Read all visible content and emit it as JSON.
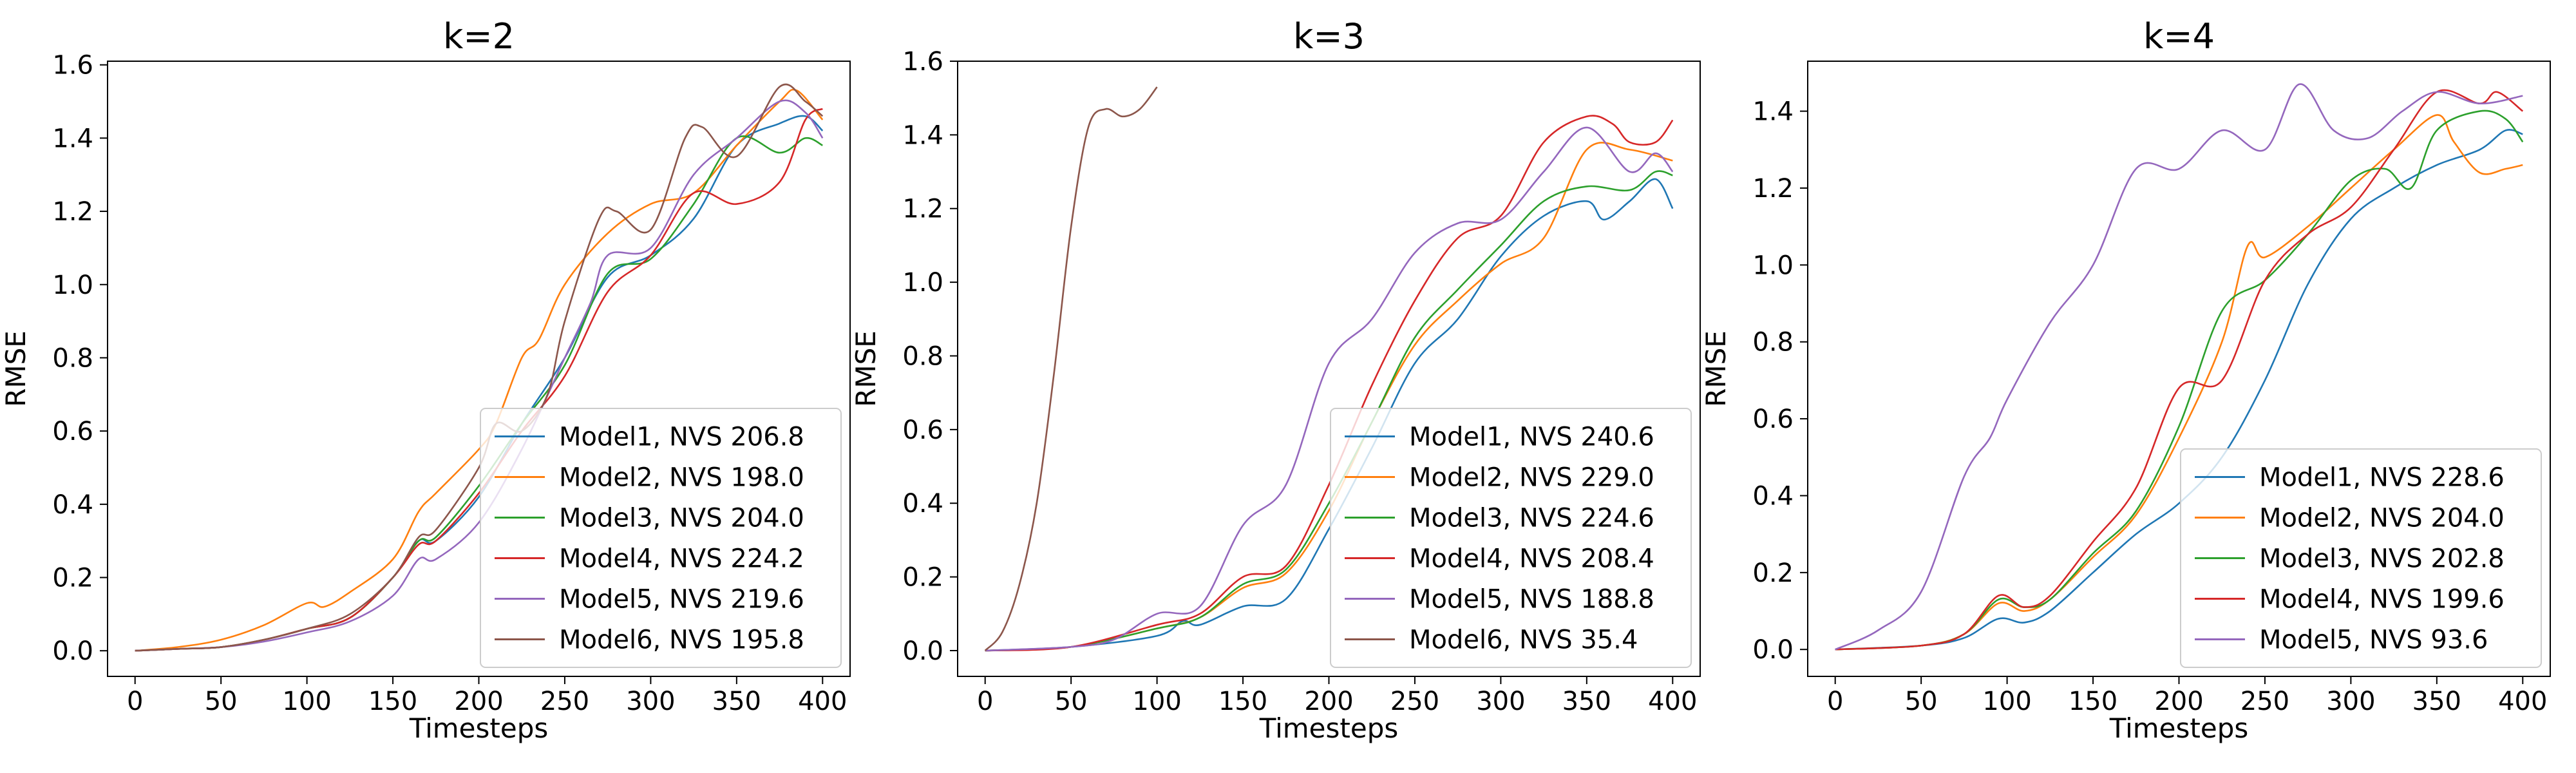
{
  "colors": {
    "Model1": "#1f77b4",
    "Model2": "#ff7f0e",
    "Model3": "#2ca02c",
    "Model4": "#d62728",
    "Model5": "#9467bd",
    "Model6": "#8c564b"
  },
  "chart_data": [
    {
      "type": "line",
      "title": "k=2",
      "xlabel": "Timesteps",
      "ylabel": "RMSE",
      "xlim": [
        -16,
        416
      ],
      "ylim": [
        -0.07,
        1.61
      ],
      "xticks": [
        0,
        50,
        100,
        150,
        200,
        250,
        300,
        350,
        400
      ],
      "yticks": [
        0.0,
        0.2,
        0.4,
        0.6,
        0.8,
        1.0,
        1.2,
        1.4,
        1.6
      ],
      "legend_position": "lower-right",
      "grid": false,
      "series": [
        {
          "name": "Model1, NVS 206.8",
          "x": [
            0,
            25,
            50,
            75,
            100,
            125,
            150,
            165,
            175,
            200,
            225,
            250,
            275,
            300,
            325,
            350,
            375,
            390,
            400
          ],
          "y": [
            0.0,
            0.005,
            0.01,
            0.03,
            0.06,
            0.09,
            0.2,
            0.3,
            0.3,
            0.42,
            0.62,
            0.8,
            1.02,
            1.08,
            1.18,
            1.38,
            1.44,
            1.46,
            1.42
          ]
        },
        {
          "name": "Model2, NVS 198.0",
          "x": [
            0,
            25,
            50,
            75,
            100,
            110,
            125,
            150,
            165,
            175,
            200,
            210,
            225,
            235,
            250,
            275,
            300,
            325,
            350,
            375,
            385,
            400
          ],
          "y": [
            0.0,
            0.01,
            0.03,
            0.07,
            0.13,
            0.12,
            0.16,
            0.25,
            0.38,
            0.43,
            0.55,
            0.62,
            0.8,
            0.85,
            1.0,
            1.14,
            1.22,
            1.25,
            1.38,
            1.5,
            1.53,
            1.45
          ]
        },
        {
          "name": "Model3, NVS 204.0",
          "x": [
            0,
            25,
            50,
            75,
            100,
            125,
            150,
            165,
            175,
            200,
            225,
            250,
            275,
            300,
            325,
            350,
            375,
            390,
            400
          ],
          "y": [
            0.0,
            0.005,
            0.01,
            0.03,
            0.06,
            0.09,
            0.2,
            0.3,
            0.31,
            0.45,
            0.62,
            0.78,
            1.03,
            1.07,
            1.22,
            1.4,
            1.36,
            1.4,
            1.38
          ]
        },
        {
          "name": "Model4, NVS 224.2",
          "x": [
            0,
            25,
            50,
            75,
            100,
            125,
            150,
            165,
            175,
            200,
            225,
            250,
            275,
            300,
            325,
            350,
            375,
            390,
            400
          ],
          "y": [
            0.0,
            0.005,
            0.01,
            0.03,
            0.06,
            0.09,
            0.2,
            0.29,
            0.3,
            0.43,
            0.6,
            0.75,
            0.98,
            1.08,
            1.25,
            1.22,
            1.28,
            1.45,
            1.48
          ]
        },
        {
          "name": "Model5, NVS 219.6",
          "x": [
            0,
            25,
            50,
            75,
            100,
            125,
            150,
            165,
            175,
            200,
            225,
            250,
            265,
            275,
            300,
            325,
            350,
            375,
            390,
            400
          ],
          "y": [
            0.0,
            0.005,
            0.01,
            0.025,
            0.05,
            0.08,
            0.15,
            0.25,
            0.25,
            0.35,
            0.55,
            0.8,
            0.95,
            1.08,
            1.1,
            1.3,
            1.4,
            1.5,
            1.47,
            1.4
          ]
        },
        {
          "name": "Model6, NVS 195.8",
          "x": [
            0,
            25,
            50,
            75,
            100,
            125,
            150,
            165,
            175,
            200,
            210,
            225,
            240,
            250,
            270,
            280,
            300,
            320,
            330,
            350,
            375,
            390,
            400
          ],
          "y": [
            0.0,
            0.005,
            0.01,
            0.03,
            0.06,
            0.1,
            0.2,
            0.31,
            0.33,
            0.5,
            0.62,
            0.6,
            0.7,
            0.9,
            1.18,
            1.2,
            1.15,
            1.4,
            1.43,
            1.35,
            1.54,
            1.5,
            1.46
          ]
        }
      ]
    },
    {
      "type": "line",
      "title": "k=3",
      "xlabel": "Timesteps",
      "ylabel": "RMSE",
      "xlim": [
        -16,
        416
      ],
      "ylim": [
        -0.07,
        1.6
      ],
      "xticks": [
        0,
        50,
        100,
        150,
        200,
        250,
        300,
        350,
        400
      ],
      "yticks": [
        0.0,
        0.2,
        0.4,
        0.6,
        0.8,
        1.0,
        1.2,
        1.4,
        1.6
      ],
      "legend_position": "lower-right",
      "grid": false,
      "series": [
        {
          "name": "Model1, NVS 240.6",
          "x": [
            0,
            50,
            100,
            115,
            125,
            150,
            175,
            200,
            225,
            250,
            275,
            300,
            325,
            350,
            360,
            375,
            390,
            400
          ],
          "y": [
            0.0,
            0.01,
            0.04,
            0.08,
            0.07,
            0.12,
            0.14,
            0.33,
            0.55,
            0.78,
            0.9,
            1.07,
            1.18,
            1.22,
            1.17,
            1.22,
            1.28,
            1.2
          ]
        },
        {
          "name": "Model2, NVS 229.0",
          "x": [
            0,
            50,
            100,
            125,
            150,
            175,
            200,
            225,
            250,
            275,
            300,
            325,
            350,
            375,
            400
          ],
          "y": [
            0.0,
            0.01,
            0.06,
            0.09,
            0.17,
            0.21,
            0.38,
            0.62,
            0.83,
            0.95,
            1.05,
            1.12,
            1.36,
            1.36,
            1.33
          ]
        },
        {
          "name": "Model3, NVS 224.6",
          "x": [
            0,
            50,
            100,
            125,
            150,
            175,
            200,
            225,
            250,
            275,
            300,
            325,
            350,
            375,
            390,
            400
          ],
          "y": [
            0.0,
            0.01,
            0.06,
            0.09,
            0.18,
            0.22,
            0.4,
            0.62,
            0.85,
            0.98,
            1.1,
            1.22,
            1.26,
            1.25,
            1.3,
            1.29
          ]
        },
        {
          "name": "Model4, NVS 208.4",
          "x": [
            0,
            50,
            100,
            125,
            150,
            175,
            200,
            225,
            250,
            275,
            300,
            325,
            350,
            365,
            375,
            390,
            400
          ],
          "y": [
            0.0,
            0.01,
            0.07,
            0.1,
            0.2,
            0.23,
            0.45,
            0.72,
            0.95,
            1.12,
            1.18,
            1.38,
            1.45,
            1.43,
            1.38,
            1.38,
            1.44
          ]
        },
        {
          "name": "Model5, NVS 188.8",
          "x": [
            0,
            50,
            75,
            100,
            125,
            150,
            175,
            200,
            225,
            250,
            275,
            300,
            325,
            350,
            375,
            390,
            400
          ],
          "y": [
            0.0,
            0.01,
            0.03,
            0.1,
            0.12,
            0.34,
            0.45,
            0.78,
            0.9,
            1.08,
            1.16,
            1.17,
            1.3,
            1.42,
            1.3,
            1.35,
            1.3
          ]
        },
        {
          "name": "Model6, NVS 35.4",
          "x": [
            0,
            10,
            20,
            30,
            40,
            50,
            60,
            70,
            80,
            90,
            100
          ],
          "y": [
            0.0,
            0.05,
            0.18,
            0.4,
            0.75,
            1.15,
            1.42,
            1.47,
            1.45,
            1.47,
            1.53
          ]
        }
      ]
    },
    {
      "type": "line",
      "title": "k=4",
      "xlabel": "Timesteps",
      "ylabel": "RMSE",
      "xlim": [
        -16,
        416
      ],
      "ylim": [
        -0.07,
        1.53
      ],
      "xticks": [
        0,
        50,
        100,
        150,
        200,
        250,
        300,
        350,
        400
      ],
      "yticks": [
        0.0,
        0.2,
        0.4,
        0.6,
        0.8,
        1.0,
        1.2,
        1.4
      ],
      "legend_position": "lower-right",
      "grid": false,
      "series": [
        {
          "name": "Model1, NVS 228.6",
          "x": [
            0,
            50,
            75,
            95,
            110,
            125,
            150,
            175,
            200,
            225,
            250,
            275,
            300,
            325,
            350,
            375,
            390,
            400
          ],
          "y": [
            0.0,
            0.01,
            0.03,
            0.08,
            0.07,
            0.1,
            0.2,
            0.3,
            0.38,
            0.5,
            0.7,
            0.95,
            1.12,
            1.2,
            1.26,
            1.3,
            1.35,
            1.34
          ]
        },
        {
          "name": "Model2, NVS 204.0",
          "x": [
            0,
            50,
            75,
            95,
            110,
            125,
            150,
            175,
            200,
            225,
            240,
            250,
            275,
            300,
            325,
            350,
            360,
            375,
            390,
            400
          ],
          "y": [
            0.0,
            0.01,
            0.04,
            0.12,
            0.1,
            0.13,
            0.24,
            0.35,
            0.55,
            0.8,
            1.05,
            1.02,
            1.1,
            1.2,
            1.3,
            1.39,
            1.32,
            1.24,
            1.25,
            1.26
          ]
        },
        {
          "name": "Model3, NVS 202.8",
          "x": [
            0,
            50,
            75,
            95,
            110,
            125,
            150,
            175,
            200,
            225,
            250,
            275,
            300,
            320,
            335,
            350,
            375,
            390,
            400
          ],
          "y": [
            0.0,
            0.01,
            0.04,
            0.13,
            0.11,
            0.13,
            0.25,
            0.36,
            0.58,
            0.88,
            0.96,
            1.08,
            1.22,
            1.25,
            1.2,
            1.35,
            1.4,
            1.38,
            1.32
          ]
        },
        {
          "name": "Model4, NVS 199.6",
          "x": [
            0,
            50,
            75,
            95,
            110,
            125,
            150,
            175,
            200,
            225,
            250,
            275,
            300,
            325,
            350,
            375,
            385,
            400
          ],
          "y": [
            0.0,
            0.01,
            0.04,
            0.14,
            0.11,
            0.14,
            0.28,
            0.42,
            0.68,
            0.7,
            0.96,
            1.08,
            1.15,
            1.3,
            1.45,
            1.42,
            1.45,
            1.4
          ]
        },
        {
          "name": "Model5, NVS 93.6",
          "x": [
            0,
            25,
            50,
            75,
            90,
            100,
            125,
            150,
            175,
            200,
            225,
            250,
            270,
            290,
            310,
            330,
            350,
            375,
            400
          ],
          "y": [
            0.0,
            0.05,
            0.15,
            0.45,
            0.55,
            0.65,
            0.85,
            1.0,
            1.25,
            1.25,
            1.35,
            1.3,
            1.47,
            1.35,
            1.33,
            1.4,
            1.45,
            1.42,
            1.44
          ]
        }
      ]
    }
  ]
}
